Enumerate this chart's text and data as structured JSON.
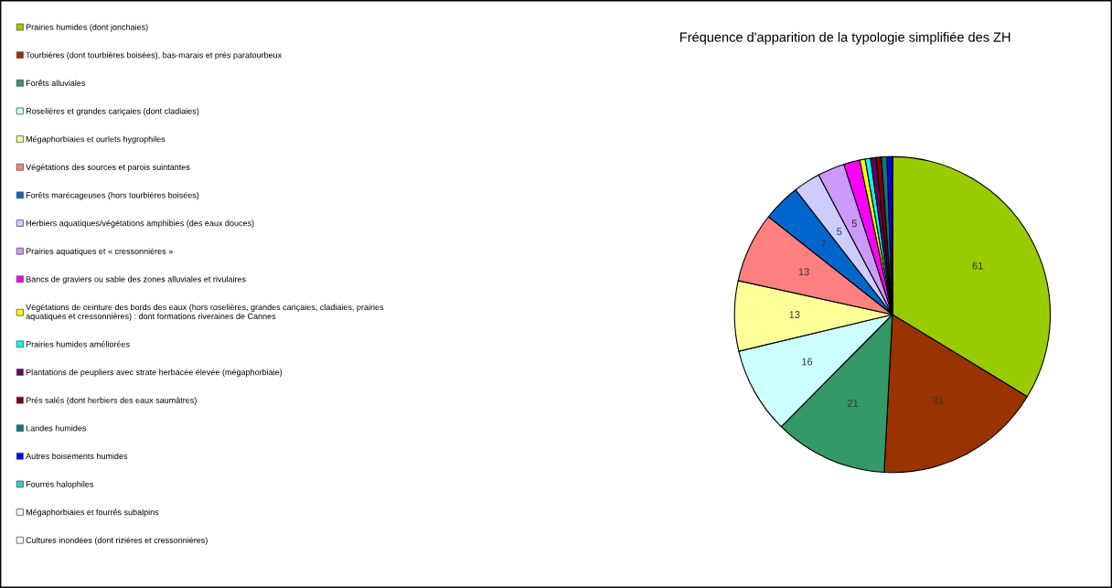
{
  "chart_data": {
    "type": "pie",
    "title": "Fréquence d'apparition de la typologie simplifiée des ZH",
    "categories": [
      "Prairies humides (dont jonchaies)",
      "Tourbières (dont tourbières boisées), bas-marais et prés paratourbeux",
      "Forêts alluviales",
      "Roselières et grandes cariçaies (dont cladiaies)",
      "Mégaphorbiaies et ourlets hygrophiles",
      "Végétations des sources et parois suintantes",
      "Forêts marécageuses (hors tourbières boisées)",
      "Herbiers aquatiques/végétations amphibies (des eaux douces)",
      "Prairies aquatiques et « cressonnières »",
      "Bancs de graviers ou sable des zones alluviales et rivulaires",
      "Végétations de ceinture des bords des eaux (hors roselières, grandes cariçaies, cladiaies, prairies\naquatiques et cressonnières) : dont formations riveraines de Cannes",
      "Prairies humides améliorées",
      "Plantations de peupliers avec strate herbacée élevée (mégaphorbiaie)",
      "Prés salés (dont herbiers des eaux saumâtres)",
      "Landes humides",
      "Autres boisements humides",
      "Fourrés halophiles",
      "Mégaphorbiaies et fourrés subalpins",
      "Cultures inondées (dont rizières et cressonnières)"
    ],
    "values": [
      61,
      31,
      21,
      16,
      13,
      13,
      7,
      5,
      5,
      3,
      1,
      1,
      1,
      1,
      1,
      1,
      0,
      0,
      0
    ],
    "value_labels": [
      "61",
      "31",
      "21",
      "16",
      "13",
      "13",
      "7",
      "5",
      "5",
      null,
      null,
      null,
      null,
      null,
      null,
      null,
      null,
      null,
      null
    ],
    "colors": [
      "#99cc00",
      "#993300",
      "#339966",
      "#ccffff",
      "#ffff99",
      "#ff8080",
      "#0066cc",
      "#ccccff",
      "#cc99ff",
      "#ff00ff",
      "#ffff00",
      "#00ffff",
      "#660066",
      "#800000",
      "#008080",
      "#0000ff",
      "#33cccc",
      "#ffffff",
      "#ffffff"
    ],
    "legend": "left"
  }
}
